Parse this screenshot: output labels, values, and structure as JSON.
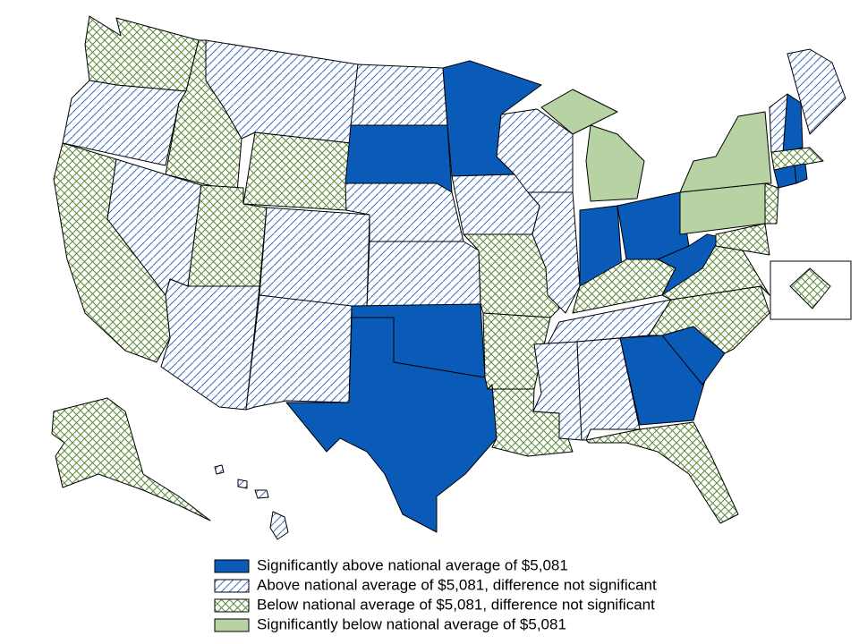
{
  "legend": {
    "items": [
      {
        "label": "Significantly above national average of $5,081",
        "color": "#0a5bb8",
        "pattern": "solid"
      },
      {
        "label": "Above national average of $5,081, difference not significant",
        "color": "#3a6fc4",
        "pattern": "hatch"
      },
      {
        "label": "Below national average of $5,081, difference not significant",
        "color": "#5e8c3a",
        "pattern": "crosshatch"
      },
      {
        "label": "Significantly below national average of $5,081",
        "color": "#b7d3a4",
        "pattern": "solid"
      }
    ]
  }
}
